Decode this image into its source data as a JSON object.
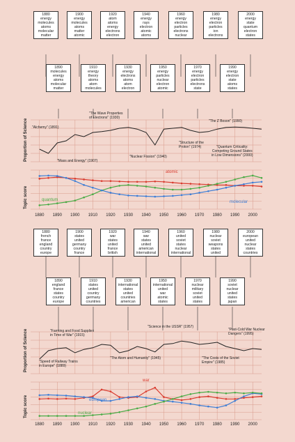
{
  "panels": [
    {
      "boxes_top": [
        {
          "year": "1880",
          "words": [
            "energy",
            "molecules",
            "atoms",
            "molecular",
            "matter"
          ]
        },
        {
          "year": "1900",
          "words": [
            "energy",
            "molecules",
            "atoms",
            "matter",
            "atomic"
          ]
        },
        {
          "year": "1920",
          "words": [
            "atom",
            "atoms",
            "energy",
            "electrons",
            "electron"
          ]
        },
        {
          "year": "1940",
          "words": [
            "energy",
            "rays",
            "electron",
            "atomic",
            "atoms"
          ]
        },
        {
          "year": "1960",
          "words": [
            "energy",
            "electron",
            "particles",
            "electrons",
            "nuclear"
          ]
        },
        {
          "year": "1980",
          "words": [
            "energy",
            "electron",
            "particles",
            "ion",
            "electrons"
          ]
        },
        {
          "year": "2000",
          "words": [
            "energy",
            "state",
            "quantum",
            "electron",
            "states"
          ]
        }
      ],
      "boxes_bottom": [
        {
          "year": "1890",
          "words": [
            "molecules",
            "energy",
            "atoms",
            "molecular",
            "matter"
          ]
        },
        {
          "year": "1910",
          "words": [
            "energy",
            "theory",
            "atoms",
            "atom",
            "molecules"
          ]
        },
        {
          "year": "1930",
          "words": [
            "energy",
            "electrons",
            "atoms",
            "atom",
            "electron"
          ]
        },
        {
          "year": "1950",
          "words": [
            "energy",
            "particles",
            "nuclear",
            "electron",
            "atomic"
          ]
        },
        {
          "year": "1970",
          "words": [
            "energy",
            "electron",
            "particles",
            "electrons",
            "state"
          ]
        },
        {
          "year": "1990",
          "words": [
            "energy",
            "electron",
            "state",
            "atoms",
            "states"
          ]
        }
      ],
      "ylabel_prop": "Proportion of Science",
      "ylabel_topic": "Topic score",
      "annotations": [
        {
          "text": "\"Alchemy\" (1891)"
        },
        {
          "text": "\"The Wave Properties\nof Electrons\" (1930)"
        },
        {
          "text": "\"Mass and Energy\" (1907)"
        },
        {
          "text": "\"Nuclear Fission\" (1940)"
        },
        {
          "text": "\"Structure of the\nProton\" (1974)"
        },
        {
          "text": "\"The Z Boson\" (1990)"
        },
        {
          "text": "\"Quantum Criticality:\nCompeting Ground States\nin Low Dimensions\" (2000)"
        }
      ],
      "series_labels": [
        {
          "name": "atomic",
          "color": "#d93a2e"
        },
        {
          "name": "quantum",
          "color": "#4aab46"
        },
        {
          "name": "molecular",
          "color": "#3d7ed6"
        }
      ]
    },
    {
      "boxes_top": [
        {
          "year": "1880",
          "words": [
            "french",
            "france",
            "england",
            "country",
            "europe"
          ]
        },
        {
          "year": "1900",
          "words": [
            "states",
            "united",
            "germany",
            "country",
            "france"
          ]
        },
        {
          "year": "1920",
          "words": [
            "war",
            "states",
            "united",
            "france",
            "british"
          ]
        },
        {
          "year": "1940",
          "words": [
            "war",
            "states",
            "united",
            "american",
            "international"
          ]
        },
        {
          "year": "1960",
          "words": [
            "united",
            "soviet",
            "states",
            "nuclear",
            "international"
          ]
        },
        {
          "year": "1980",
          "words": [
            "nuclear",
            "soviet",
            "weapons",
            "states",
            "united"
          ]
        },
        {
          "year": "2000",
          "words": [
            "european",
            "united",
            "nuclear",
            "states",
            "countries"
          ]
        }
      ],
      "boxes_bottom": [
        {
          "year": "1890",
          "words": [
            "england",
            "france",
            "states",
            "country",
            "europe"
          ]
        },
        {
          "year": "1910",
          "words": [
            "states",
            "united",
            "country",
            "germany",
            "countries"
          ]
        },
        {
          "year": "1930",
          "words": [
            "international",
            "states",
            "united",
            "countries",
            "american"
          ]
        },
        {
          "year": "1950",
          "words": [
            "international",
            "united",
            "war",
            "atomic",
            "states"
          ]
        },
        {
          "year": "1970",
          "words": [
            "nuclear",
            "military",
            "soviet",
            "united",
            "states"
          ]
        },
        {
          "year": "1990",
          "words": [
            "soviet",
            "nuclear",
            "united",
            "states",
            "japan"
          ]
        }
      ],
      "ylabel_prop": "Proportion of Science",
      "ylabel_topic": "Topic score",
      "annotations": [
        {
          "text": "\"Farming and Food Supplies\nin Time of War\" (1915)"
        },
        {
          "text": "\"Science in the USSR\" (1957)"
        },
        {
          "text": "\"Post-Cold War Nuclear\nDangers\" (1995)"
        },
        {
          "text": "\"Speed of Railway Trains\nin Europe\" (1889)"
        },
        {
          "text": "\"The Atom and Humanity\" (1945)"
        },
        {
          "text": "\"The Costs of the Soviet\nEmpire\" (1985)"
        }
      ],
      "series_labels": [
        {
          "name": "war",
          "color": "#d93a2e"
        },
        {
          "name": "european",
          "color": "#3d7ed6"
        },
        {
          "name": "nuclear",
          "color": "#4aab46"
        }
      ]
    }
  ],
  "chart_data": [
    {
      "type": "line",
      "title": "",
      "ylabel": "Proportion of Science",
      "x": [
        1880,
        1885,
        1890,
        1895,
        1900,
        1905,
        1910,
        1915,
        1920,
        1925,
        1930,
        1935,
        1940,
        1945,
        1950,
        1955,
        1960,
        1965,
        1970,
        1975,
        1980,
        1985,
        1990,
        1995,
        2000,
        2005
      ],
      "series": [
        {
          "name": "",
          "values": [
            0.3,
            0.2,
            0.45,
            0.5,
            0.65,
            0.6,
            0.7,
            0.72,
            0.75,
            0.8,
            0.82,
            0.78,
            0.7,
            0.4,
            0.78,
            0.8,
            0.82,
            0.75,
            0.7,
            0.72,
            0.78,
            0.82,
            0.83,
            0.82,
            0.8,
            0.78
          ]
        }
      ]
    },
    {
      "type": "line",
      "ylabel": "Topic score",
      "x": [
        1880,
        1885,
        1890,
        1895,
        1900,
        1905,
        1910,
        1915,
        1920,
        1925,
        1930,
        1935,
        1940,
        1945,
        1950,
        1955,
        1960,
        1965,
        1970,
        1975,
        1980,
        1985,
        1990,
        1995,
        2000,
        2005
      ],
      "xticks": [
        "1880",
        "1890",
        "1900",
        "1910",
        "1920",
        "1930",
        "1940",
        "1950",
        "1960",
        "1970",
        "1980",
        "1990",
        "2000"
      ],
      "series": [
        {
          "name": "atomic",
          "values": [
            0.78,
            0.8,
            0.82,
            0.8,
            0.78,
            0.76,
            0.74,
            0.72,
            0.72,
            0.71,
            0.7,
            0.7,
            0.7,
            0.71,
            0.7,
            0.68,
            0.66,
            0.65,
            0.64,
            0.63,
            0.62,
            0.62,
            0.6,
            0.6,
            0.6,
            0.58
          ]
        },
        {
          "name": "quantum",
          "values": [
            0.1,
            0.12,
            0.15,
            0.18,
            0.22,
            0.3,
            0.38,
            0.48,
            0.55,
            0.6,
            0.62,
            0.6,
            0.58,
            0.55,
            0.52,
            0.5,
            0.5,
            0.52,
            0.55,
            0.6,
            0.65,
            0.7,
            0.76,
            0.82,
            0.86,
            0.8
          ]
        },
        {
          "name": "molecular",
          "values": [
            0.85,
            0.86,
            0.85,
            0.8,
            0.72,
            0.62,
            0.55,
            0.48,
            0.42,
            0.38,
            0.35,
            0.34,
            0.33,
            0.32,
            0.33,
            0.34,
            0.36,
            0.38,
            0.42,
            0.46,
            0.5,
            0.55,
            0.6,
            0.64,
            0.68,
            0.7
          ]
        }
      ]
    },
    {
      "type": "line",
      "ylabel": "Proportion of Science",
      "x": [
        1880,
        1885,
        1890,
        1895,
        1900,
        1905,
        1910,
        1915,
        1920,
        1925,
        1930,
        1935,
        1940,
        1945,
        1950,
        1955,
        1960,
        1965,
        1970,
        1975,
        1980,
        1985,
        1990,
        1995,
        2000,
        2005
      ],
      "series": [
        {
          "name": "",
          "values": [
            0.35,
            0.55,
            0.6,
            0.62,
            0.5,
            0.58,
            0.62,
            0.7,
            0.68,
            0.5,
            0.55,
            0.65,
            0.6,
            0.52,
            0.7,
            0.72,
            0.78,
            0.75,
            0.7,
            0.72,
            0.75,
            0.65,
            0.6,
            0.55,
            0.6,
            0.58
          ]
        }
      ]
    },
    {
      "type": "line",
      "ylabel": "Topic score",
      "x": [
        1880,
        1885,
        1890,
        1895,
        1900,
        1905,
        1910,
        1915,
        1920,
        1925,
        1930,
        1935,
        1940,
        1945,
        1950,
        1955,
        1960,
        1965,
        1970,
        1975,
        1980,
        1985,
        1990,
        1995,
        2000,
        2005
      ],
      "xticks": [
        "1880",
        "1890",
        "1900",
        "1910",
        "1920",
        "1930",
        "1940",
        "1950",
        "1960",
        "1970",
        "1980",
        "1990",
        "2000"
      ],
      "series": [
        {
          "name": "war",
          "values": [
            0.55,
            0.56,
            0.55,
            0.56,
            0.55,
            0.58,
            0.62,
            0.8,
            0.75,
            0.6,
            0.58,
            0.6,
            0.75,
            0.85,
            0.6,
            0.55,
            0.52,
            0.55,
            0.6,
            0.62,
            0.58,
            0.55,
            0.55,
            0.58,
            0.6,
            0.62
          ]
        },
        {
          "name": "european",
          "values": [
            0.65,
            0.66,
            0.65,
            0.64,
            0.62,
            0.6,
            0.58,
            0.5,
            0.5,
            0.55,
            0.6,
            0.62,
            0.58,
            0.55,
            0.5,
            0.48,
            0.45,
            0.42,
            0.38,
            0.35,
            0.32,
            0.38,
            0.5,
            0.62,
            0.7,
            0.68
          ]
        },
        {
          "name": "nuclear",
          "values": [
            0.1,
            0.1,
            0.1,
            0.1,
            0.1,
            0.1,
            0.12,
            0.14,
            0.16,
            0.2,
            0.25,
            0.3,
            0.35,
            0.42,
            0.48,
            0.55,
            0.62,
            0.68,
            0.72,
            0.74,
            0.72,
            0.7,
            0.72,
            0.7,
            0.72,
            0.7
          ]
        }
      ]
    }
  ]
}
